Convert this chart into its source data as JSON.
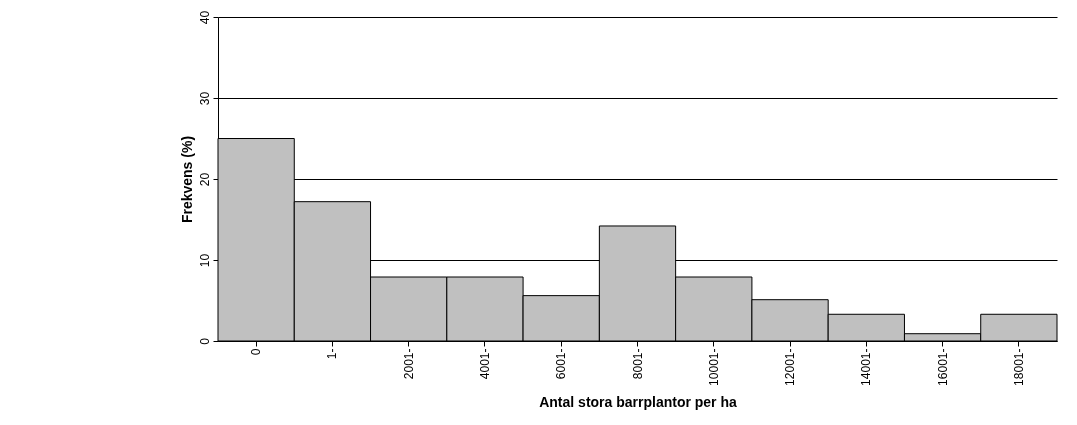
{
  "chart_data": {
    "type": "bar",
    "xlabel": "Antal stora barrplantor per ha",
    "ylabel": "Frekvens (%)",
    "categories": [
      "0",
      "1-",
      "2001-",
      "4001-",
      "6001-",
      "8001-",
      "10001-",
      "12001-",
      "14001-",
      "16001-",
      "18001-"
    ],
    "values": [
      25,
      17.2,
      7.9,
      7.9,
      5.6,
      14.2,
      7.9,
      5.1,
      3.3,
      0.9,
      3.3
    ],
    "color": "#c0c0c0",
    "ylim": [
      0,
      40
    ],
    "yticks": [
      0,
      10,
      20,
      30,
      40
    ],
    "grid": "y"
  }
}
